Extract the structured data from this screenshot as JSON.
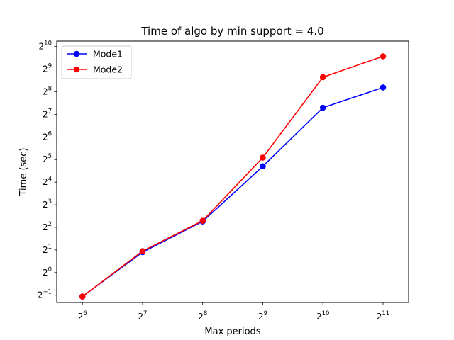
{
  "chart_data": {
    "type": "line",
    "title": "Time of algo by min support = 4.0",
    "xlabel": "Max periods",
    "ylabel": "Time (sec)",
    "x_scale": "log2",
    "y_scale": "log2",
    "x": [
      64,
      128,
      256,
      512,
      1024,
      2048
    ],
    "x_tick_base": [
      "2",
      "2",
      "2",
      "2",
      "2",
      "2"
    ],
    "x_tick_exp": [
      "6",
      "7",
      "8",
      "9",
      "10",
      "11"
    ],
    "y_tick_base": [
      "2",
      "2",
      "2",
      "2",
      "2",
      "2",
      "2",
      "2",
      "2",
      "2",
      "2",
      "2"
    ],
    "y_tick_exp": [
      "−1",
      "0",
      "1",
      "2",
      "3",
      "4",
      "5",
      "6",
      "7",
      "8",
      "9",
      "10"
    ],
    "xlim": [
      47.6,
      2750
    ],
    "ylim": [
      0.4,
      1210
    ],
    "grid": false,
    "legend_position": "upper left",
    "series": [
      {
        "name": "Mode1",
        "color": "#0000ff",
        "values": [
          0.48,
          1.87,
          4.8,
          26.0,
          157.0,
          292.0
        ]
      },
      {
        "name": "Mode2",
        "color": "#ff0000",
        "values": [
          0.48,
          1.93,
          4.9,
          34.0,
          400.0,
          760.0
        ]
      }
    ]
  }
}
